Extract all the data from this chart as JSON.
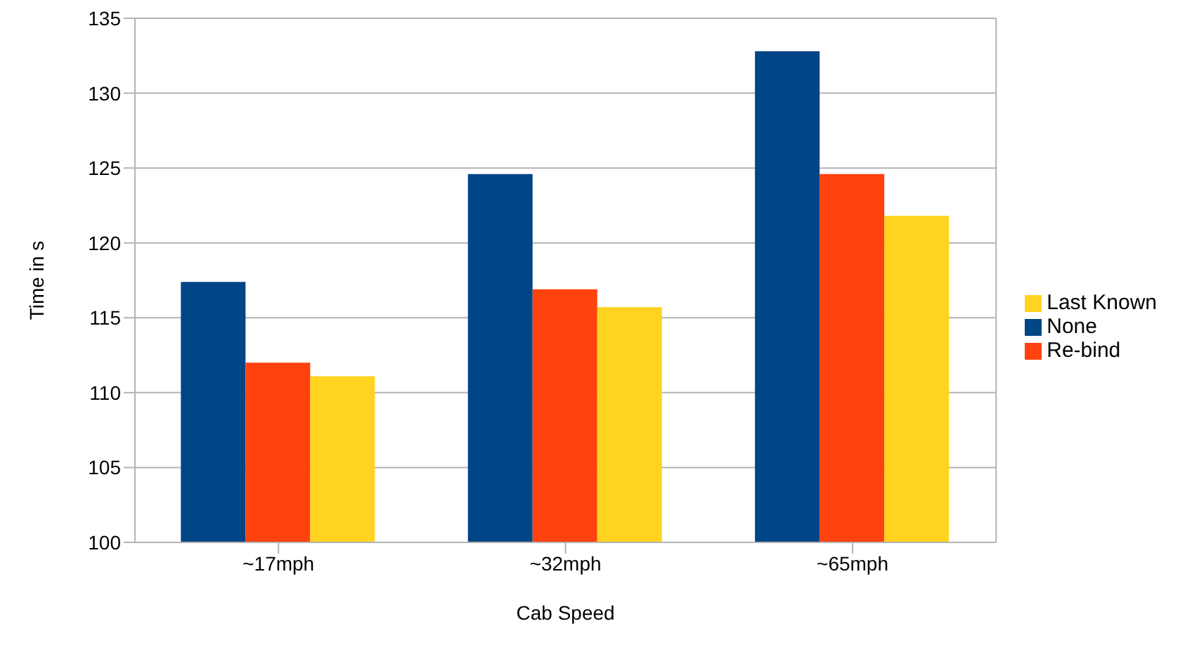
{
  "chart_data": {
    "type": "bar",
    "xlabel": "Cab Speed",
    "ylabel": "Time in s",
    "categories": [
      "~17mph",
      "~32mph",
      "~65mph"
    ],
    "series": [
      {
        "name": "None",
        "color": "#004586",
        "values": [
          117.4,
          124.6,
          132.8
        ]
      },
      {
        "name": "Re-bind",
        "color": "#ff420e",
        "values": [
          112.0,
          116.9,
          124.6
        ]
      },
      {
        "name": "Last Known",
        "color": "#ffd320",
        "values": [
          111.1,
          115.7,
          121.8
        ]
      }
    ],
    "ylim": [
      100,
      135
    ],
    "yticks": [
      100,
      105,
      110,
      115,
      120,
      125,
      130,
      135
    ],
    "grid": "y",
    "legend": "right"
  }
}
